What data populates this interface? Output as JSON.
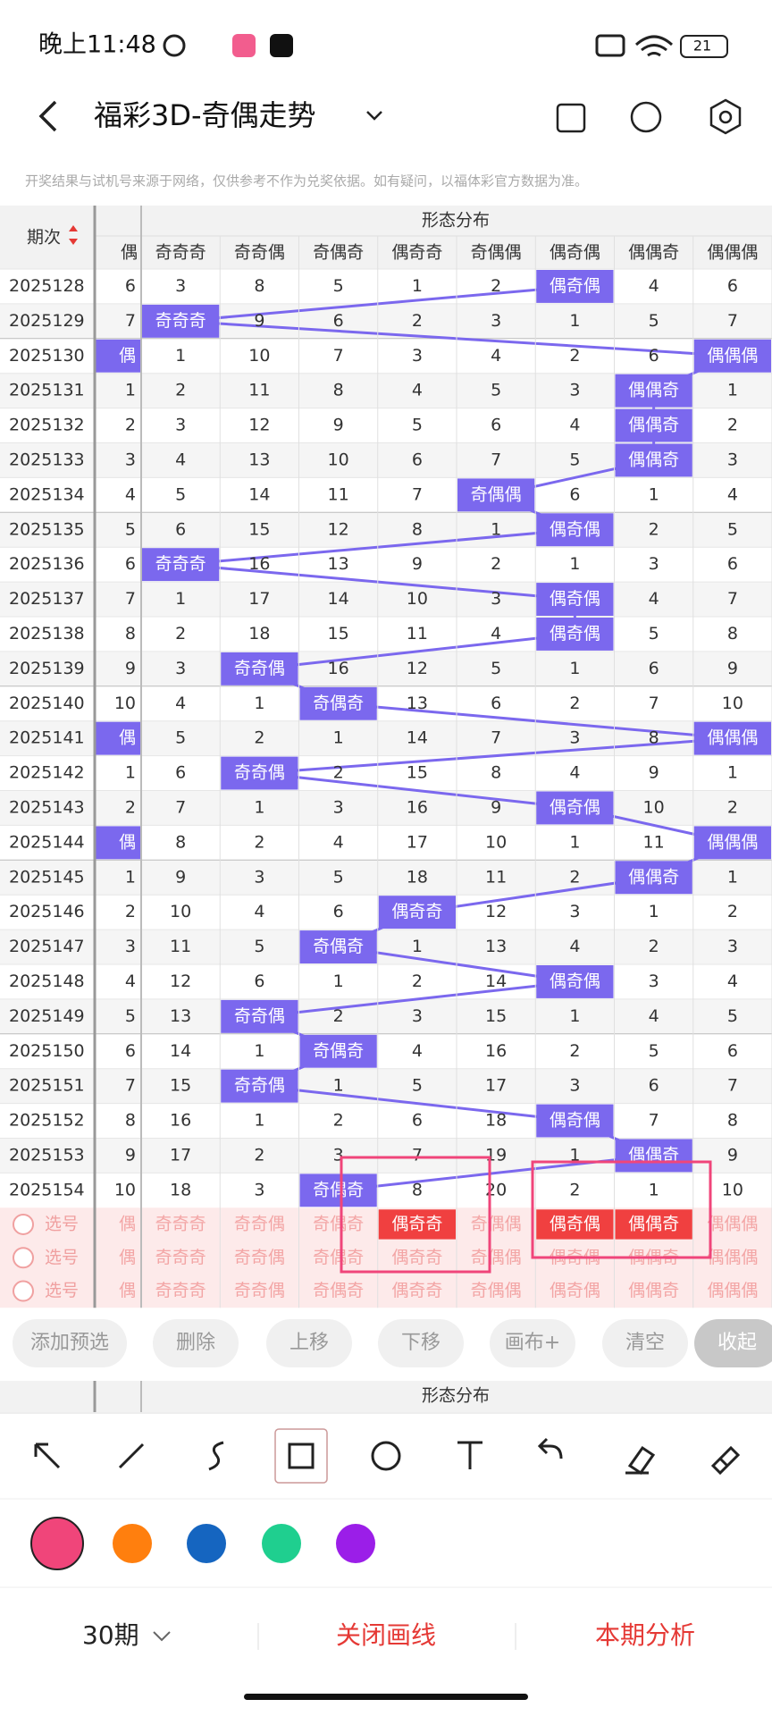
{
  "status_bar": {
    "time": "晚上11:48",
    "battery": "21"
  },
  "header": {
    "title": "福彩3D-奇偶走势"
  },
  "notice": "开奖结果与试机号来源于网络，仅供参考不作为兑奖依据。如有疑问，以福体彩官方数据为准。",
  "table": {
    "period_header": "期次",
    "group_header": "形态分布",
    "columns": [
      "偶",
      "奇奇奇",
      "奇奇偶",
      "奇偶奇",
      "偶奇奇",
      "奇偶偶",
      "偶奇偶",
      "偶偶奇",
      "偶偶偶"
    ],
    "rows": [
      {
        "period": "2025128",
        "cells": [
          6,
          3,
          8,
          5,
          1,
          2,
          "偶奇偶",
          4,
          6
        ]
      },
      {
        "period": "2025129",
        "cells": [
          7,
          "奇奇奇",
          9,
          6,
          2,
          3,
          1,
          5,
          7
        ]
      },
      {
        "period": "2025130",
        "cells": [
          "偶",
          1,
          10,
          7,
          3,
          4,
          2,
          6,
          "偶偶偶"
        ]
      },
      {
        "period": "2025131",
        "cells": [
          1,
          2,
          11,
          8,
          4,
          5,
          3,
          "偶偶奇",
          1
        ]
      },
      {
        "period": "2025132",
        "cells": [
          2,
          3,
          12,
          9,
          5,
          6,
          4,
          "偶偶奇",
          2
        ]
      },
      {
        "period": "2025133",
        "cells": [
          3,
          4,
          13,
          10,
          6,
          7,
          5,
          "偶偶奇",
          3
        ]
      },
      {
        "period": "2025134",
        "cells": [
          4,
          5,
          14,
          11,
          7,
          "奇偶偶",
          6,
          1,
          4
        ]
      },
      {
        "period": "2025135",
        "cells": [
          5,
          6,
          15,
          12,
          8,
          1,
          "偶奇偶",
          2,
          5
        ]
      },
      {
        "period": "2025136",
        "cells": [
          6,
          "奇奇奇",
          16,
          13,
          9,
          2,
          1,
          3,
          6
        ]
      },
      {
        "period": "2025137",
        "cells": [
          7,
          1,
          17,
          14,
          10,
          3,
          "偶奇偶",
          4,
          7
        ]
      },
      {
        "period": "2025138",
        "cells": [
          8,
          2,
          18,
          15,
          11,
          4,
          "偶奇偶",
          5,
          8
        ]
      },
      {
        "period": "2025139",
        "cells": [
          9,
          3,
          "奇奇偶",
          16,
          12,
          5,
          1,
          6,
          9
        ]
      },
      {
        "period": "2025140",
        "cells": [
          10,
          4,
          1,
          "奇偶奇",
          13,
          6,
          2,
          7,
          10
        ]
      },
      {
        "period": "2025141",
        "cells": [
          "偶",
          5,
          2,
          1,
          14,
          7,
          3,
          8,
          "偶偶偶"
        ]
      },
      {
        "period": "2025142",
        "cells": [
          1,
          6,
          "奇奇偶",
          2,
          15,
          8,
          4,
          9,
          1
        ]
      },
      {
        "period": "2025143",
        "cells": [
          2,
          7,
          1,
          3,
          16,
          9,
          "偶奇偶",
          10,
          2
        ]
      },
      {
        "period": "2025144",
        "cells": [
          "偶",
          8,
          2,
          4,
          17,
          10,
          1,
          11,
          "偶偶偶"
        ]
      },
      {
        "period": "2025145",
        "cells": [
          1,
          9,
          3,
          5,
          18,
          11,
          2,
          "偶偶奇",
          1
        ]
      },
      {
        "period": "2025146",
        "cells": [
          2,
          10,
          4,
          6,
          "偶奇奇",
          12,
          3,
          1,
          2
        ]
      },
      {
        "period": "2025147",
        "cells": [
          3,
          11,
          5,
          "奇偶奇",
          1,
          13,
          4,
          2,
          3
        ]
      },
      {
        "period": "2025148",
        "cells": [
          4,
          12,
          6,
          1,
          2,
          14,
          "偶奇偶",
          3,
          4
        ]
      },
      {
        "period": "2025149",
        "cells": [
          5,
          13,
          "奇奇偶",
          2,
          3,
          15,
          1,
          4,
          5
        ]
      },
      {
        "period": "2025150",
        "cells": [
          6,
          14,
          1,
          "奇偶奇",
          4,
          16,
          2,
          5,
          6
        ]
      },
      {
        "period": "2025151",
        "cells": [
          7,
          15,
          "奇奇偶",
          1,
          5,
          17,
          3,
          6,
          7
        ]
      },
      {
        "period": "2025152",
        "cells": [
          8,
          16,
          1,
          2,
          6,
          18,
          "偶奇偶",
          7,
          8
        ]
      },
      {
        "period": "2025153",
        "cells": [
          9,
          17,
          2,
          3,
          7,
          19,
          1,
          "偶偶奇",
          9
        ]
      },
      {
        "period": "2025154",
        "cells": [
          10,
          18,
          3,
          "奇偶奇",
          8,
          20,
          2,
          1,
          10
        ]
      }
    ],
    "select_rows": [
      {
        "label": "选号",
        "cells": [
          "偶",
          "奇奇奇",
          "奇奇偶",
          "奇偶奇",
          "偶奇奇",
          "奇偶偶",
          "偶奇偶",
          "偶偶奇",
          "偶偶偶"
        ],
        "selected_columns": [
          4,
          6,
          7
        ]
      },
      {
        "label": "选号",
        "cells": [
          "偶",
          "奇奇奇",
          "奇奇偶",
          "奇偶奇",
          "偶奇奇",
          "奇偶偶",
          "偶奇偶",
          "偶偶奇",
          "偶偶偶"
        ],
        "selected_columns": []
      },
      {
        "label": "选号",
        "cells": [
          "偶",
          "奇奇奇",
          "奇奇偶",
          "奇偶奇",
          "偶奇奇",
          "奇偶偶",
          "偶奇偶",
          "偶偶奇",
          "偶偶偶"
        ],
        "selected_columns": []
      }
    ]
  },
  "buttons": [
    "添加预选",
    "删除",
    "上移",
    "下移",
    "画布+",
    "清空",
    "收起"
  ],
  "lower_group_header": "形态分布",
  "palette": [
    "#f0457a",
    "#ff7f0e",
    "#1565c0",
    "#1fcf8f",
    "#9b1ee8"
  ],
  "footer": {
    "period_select": "30期",
    "close_lines": "关闭画线",
    "analysis": "本期分析"
  }
}
